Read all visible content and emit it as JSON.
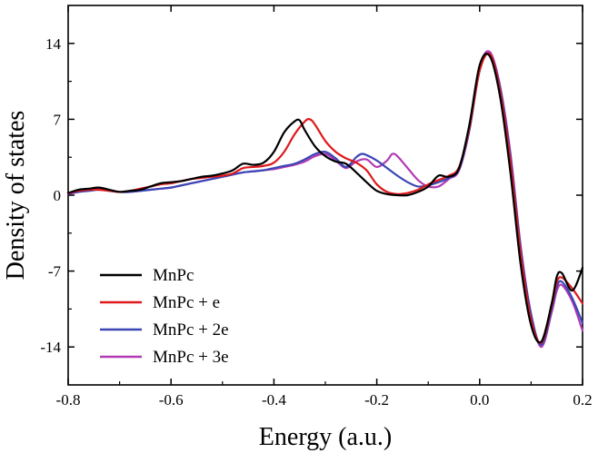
{
  "chart_data": {
    "type": "line",
    "title": "",
    "xlabel": "Energy (a.u.)",
    "ylabel": "Density of states",
    "xlim": [
      -0.8,
      0.2
    ],
    "ylim": [
      -17.5,
      17.5
    ],
    "xticks": [
      -0.8,
      -0.6,
      -0.4,
      -0.2,
      0.0,
      0.2
    ],
    "xtick_labels": [
      "-0.8",
      "-0.6",
      "-0.4",
      "-0.2",
      "0.0",
      "0.2"
    ],
    "yticks": [
      -14,
      -7,
      0,
      7,
      14
    ],
    "ytick_labels": [
      "-14",
      "-7",
      "0",
      "7",
      "14"
    ],
    "legend_position": "bottom-left",
    "grid": false,
    "series": [
      {
        "name": "MnPc",
        "color": "#000000",
        "x": [
          -0.8,
          -0.78,
          -0.76,
          -0.74,
          -0.72,
          -0.7,
          -0.68,
          -0.66,
          -0.64,
          -0.62,
          -0.6,
          -0.58,
          -0.56,
          -0.54,
          -0.52,
          -0.5,
          -0.48,
          -0.46,
          -0.44,
          -0.42,
          -0.4,
          -0.38,
          -0.36,
          -0.35,
          -0.34,
          -0.32,
          -0.3,
          -0.28,
          -0.26,
          -0.24,
          -0.22,
          -0.2,
          -0.18,
          -0.16,
          -0.14,
          -0.12,
          -0.1,
          -0.08,
          -0.06,
          -0.04,
          -0.02,
          0.0,
          0.02,
          0.04,
          0.06,
          0.08,
          0.1,
          0.12,
          0.14,
          0.15,
          0.16,
          0.18,
          0.2
        ],
        "y": [
          0.2,
          0.5,
          0.6,
          0.7,
          0.5,
          0.3,
          0.4,
          0.5,
          0.8,
          1.1,
          1.2,
          1.3,
          1.5,
          1.7,
          1.8,
          2.0,
          2.3,
          2.9,
          2.8,
          3.0,
          4.0,
          5.8,
          6.8,
          6.9,
          6.0,
          4.5,
          3.6,
          3.1,
          2.9,
          2.1,
          1.2,
          0.4,
          0.1,
          0.0,
          0.0,
          0.3,
          0.8,
          1.8,
          1.7,
          2.5,
          6.5,
          12.0,
          12.8,
          9.0,
          2.0,
          -6.5,
          -12.0,
          -13.5,
          -10.0,
          -7.5,
          -7.2,
          -8.8,
          -6.7
        ]
      },
      {
        "name": "MnPc + e",
        "color": "#e0181b",
        "x": [
          -0.8,
          -0.78,
          -0.76,
          -0.74,
          -0.72,
          -0.7,
          -0.68,
          -0.66,
          -0.64,
          -0.62,
          -0.6,
          -0.58,
          -0.56,
          -0.54,
          -0.52,
          -0.5,
          -0.48,
          -0.46,
          -0.44,
          -0.42,
          -0.4,
          -0.38,
          -0.36,
          -0.34,
          -0.33,
          -0.32,
          -0.3,
          -0.28,
          -0.26,
          -0.24,
          -0.22,
          -0.2,
          -0.18,
          -0.16,
          -0.14,
          -0.12,
          -0.1,
          -0.08,
          -0.06,
          -0.04,
          -0.02,
          0.0,
          0.02,
          0.04,
          0.06,
          0.08,
          0.1,
          0.12,
          0.14,
          0.15,
          0.16,
          0.18,
          0.2
        ],
        "y": [
          0.2,
          0.4,
          0.5,
          0.5,
          0.4,
          0.3,
          0.4,
          0.6,
          0.8,
          1.0,
          1.1,
          1.3,
          1.5,
          1.6,
          1.7,
          1.8,
          2.0,
          2.5,
          2.6,
          2.7,
          3.0,
          4.0,
          5.6,
          6.8,
          7.0,
          6.5,
          5.0,
          4.0,
          3.4,
          3.0,
          2.3,
          1.0,
          0.3,
          0.1,
          0.2,
          0.5,
          1.0,
          1.4,
          1.8,
          2.6,
          6.2,
          11.5,
          13.0,
          9.5,
          3.0,
          -5.5,
          -11.5,
          -13.6,
          -10.2,
          -8.0,
          -7.6,
          -8.6,
          -10.0
        ]
      },
      {
        "name": "MnPc + 2e",
        "color": "#3a46b5",
        "x": [
          -0.8,
          -0.78,
          -0.76,
          -0.74,
          -0.72,
          -0.7,
          -0.68,
          -0.66,
          -0.64,
          -0.62,
          -0.6,
          -0.58,
          -0.56,
          -0.54,
          -0.52,
          -0.5,
          -0.48,
          -0.46,
          -0.44,
          -0.42,
          -0.4,
          -0.38,
          -0.36,
          -0.34,
          -0.32,
          -0.3,
          -0.28,
          -0.26,
          -0.24,
          -0.23,
          -0.22,
          -0.2,
          -0.18,
          -0.16,
          -0.14,
          -0.12,
          -0.1,
          -0.08,
          -0.06,
          -0.04,
          -0.02,
          0.0,
          0.02,
          0.04,
          0.06,
          0.08,
          0.1,
          0.12,
          0.14,
          0.15,
          0.16,
          0.18,
          0.2
        ],
        "y": [
          0.2,
          0.3,
          0.4,
          0.5,
          0.4,
          0.3,
          0.3,
          0.4,
          0.5,
          0.6,
          0.7,
          0.9,
          1.1,
          1.3,
          1.5,
          1.7,
          1.9,
          2.1,
          2.2,
          2.3,
          2.5,
          2.7,
          2.9,
          3.3,
          3.8,
          4.0,
          3.4,
          2.6,
          3.5,
          3.8,
          3.7,
          3.2,
          2.5,
          1.8,
          1.2,
          0.8,
          0.9,
          1.2,
          1.6,
          2.4,
          6.0,
          11.5,
          13.0,
          9.8,
          3.5,
          -5.0,
          -11.0,
          -13.8,
          -10.5,
          -8.4,
          -8.0,
          -9.5,
          -11.8
        ]
      },
      {
        "name": "MnPc + 3e",
        "color": "#b33ab5",
        "x": [
          -0.8,
          -0.78,
          -0.76,
          -0.74,
          -0.72,
          -0.7,
          -0.68,
          -0.66,
          -0.64,
          -0.62,
          -0.6,
          -0.58,
          -0.56,
          -0.54,
          -0.52,
          -0.5,
          -0.48,
          -0.46,
          -0.44,
          -0.42,
          -0.4,
          -0.38,
          -0.36,
          -0.34,
          -0.32,
          -0.3,
          -0.28,
          -0.26,
          -0.24,
          -0.22,
          -0.2,
          -0.18,
          -0.17,
          -0.16,
          -0.14,
          -0.12,
          -0.1,
          -0.08,
          -0.06,
          -0.04,
          -0.02,
          0.0,
          0.02,
          0.04,
          0.06,
          0.08,
          0.1,
          0.12,
          0.14,
          0.15,
          0.16,
          0.18,
          0.2
        ],
        "y": [
          0.1,
          0.3,
          0.5,
          0.6,
          0.4,
          0.3,
          0.3,
          0.4,
          0.5,
          0.6,
          0.7,
          0.9,
          1.1,
          1.3,
          1.5,
          1.7,
          1.9,
          2.1,
          2.2,
          2.3,
          2.4,
          2.6,
          2.8,
          3.1,
          3.6,
          3.8,
          3.2,
          2.5,
          3.1,
          3.3,
          2.6,
          3.2,
          3.8,
          3.6,
          2.5,
          1.4,
          0.8,
          0.8,
          1.5,
          2.3,
          6.0,
          11.8,
          13.2,
          10.0,
          3.8,
          -4.8,
          -11.0,
          -14.0,
          -10.8,
          -8.8,
          -8.3,
          -9.8,
          -12.5
        ]
      }
    ]
  }
}
